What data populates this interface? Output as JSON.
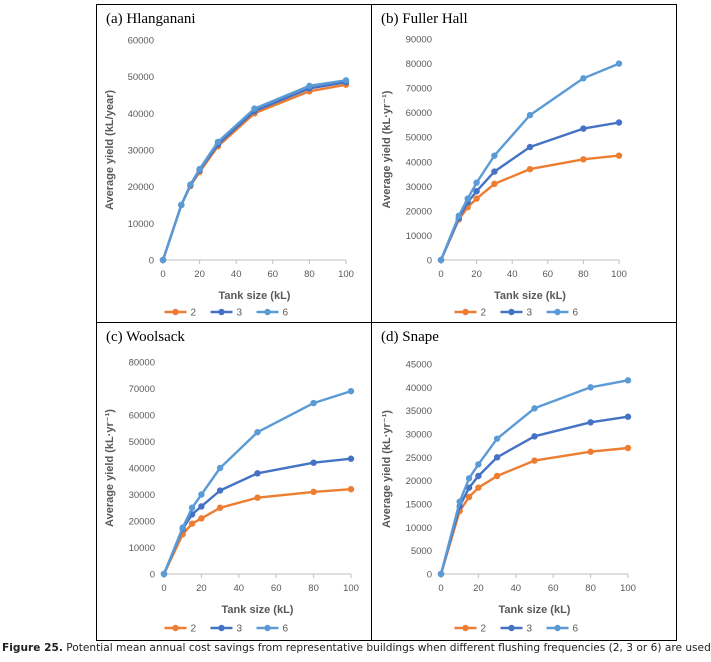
{
  "colors": {
    "series": [
      "#ed7d31",
      "#4472c4",
      "#5b9bd5"
    ],
    "axis": "#bfbfbf",
    "panel_border": "#000000",
    "text": "#595959"
  },
  "caption": {
    "label": "Figure 25.",
    "text": "Potential mean annual cost savings from representative buildings when different flushing frequencies (2, 3 or 6) are used"
  },
  "chart_data": [
    {
      "type": "line",
      "panel_title": "(a) Hlanganani",
      "xlabel": "Tank size (kL)",
      "ylabel": "Average yield (kL/year)",
      "ylim": [
        0,
        60000
      ],
      "ytick_step": 10000,
      "xlim": [
        0,
        100
      ],
      "x_ticks": [
        0,
        20,
        40,
        60,
        80,
        100
      ],
      "x": [
        0,
        10,
        15,
        20,
        30,
        50,
        80,
        100
      ],
      "series": [
        {
          "name": "2",
          "values": [
            0,
            15000,
            20200,
            24000,
            31000,
            40000,
            46000,
            47800
          ]
        },
        {
          "name": "3",
          "values": [
            0,
            15000,
            20400,
            24500,
            31500,
            40600,
            46800,
            48500
          ]
        },
        {
          "name": "6",
          "values": [
            0,
            15000,
            20600,
            24800,
            32200,
            41300,
            47500,
            49000
          ]
        }
      ],
      "legend": "bottom",
      "grid": false
    },
    {
      "type": "line",
      "panel_title": "(b) Fuller Hall",
      "xlabel": "Tank size (kL)",
      "ylabel": "Average yield (kL·yr⁻¹)",
      "ylim": [
        0,
        90000
      ],
      "ytick_step": 10000,
      "xlim": [
        0,
        100
      ],
      "x_ticks": [
        0,
        20,
        40,
        60,
        80,
        100
      ],
      "x": [
        0,
        10,
        15,
        20,
        30,
        50,
        80,
        100
      ],
      "series": [
        {
          "name": "2",
          "values": [
            0,
            16500,
            21500,
            25000,
            31000,
            37000,
            41000,
            42500
          ]
        },
        {
          "name": "3",
          "values": [
            0,
            17000,
            23500,
            28000,
            36000,
            46000,
            53500,
            56000
          ]
        },
        {
          "name": "6",
          "values": [
            0,
            18000,
            25000,
            31500,
            42500,
            59000,
            74000,
            80000
          ]
        }
      ],
      "legend": "bottom",
      "grid": false
    },
    {
      "type": "line",
      "panel_title": "(c) Woolsack",
      "xlabel": "Tank size (kL)",
      "ylabel": "Average yield (kL·yr⁻¹)",
      "ylim": [
        0,
        80000
      ],
      "ytick_step": 10000,
      "xlim": [
        0,
        100
      ],
      "x_ticks": [
        0,
        20,
        40,
        60,
        80,
        100
      ],
      "x": [
        0,
        10,
        15,
        20,
        30,
        50,
        80,
        100
      ],
      "series": [
        {
          "name": "2",
          "values": [
            0,
            15000,
            19000,
            21000,
            25000,
            28800,
            31000,
            32000
          ]
        },
        {
          "name": "3",
          "values": [
            0,
            17000,
            22500,
            25500,
            31500,
            38000,
            42000,
            43500
          ]
        },
        {
          "name": "6",
          "values": [
            0,
            17500,
            25000,
            30000,
            40000,
            53500,
            64500,
            69000
          ]
        }
      ],
      "legend": "bottom",
      "grid": false
    },
    {
      "type": "line",
      "panel_title": "(d) Snape",
      "xlabel": "Tank size (kL)",
      "ylabel": "Average yield (kL·yr⁻¹)",
      "ylim": [
        0,
        45000
      ],
      "ytick_step": 5000,
      "xlim": [
        0,
        100
      ],
      "x_ticks": [
        0,
        20,
        40,
        60,
        80,
        100
      ],
      "x": [
        0,
        10,
        15,
        20,
        30,
        50,
        80,
        100
      ],
      "series": [
        {
          "name": "2",
          "values": [
            0,
            13500,
            16500,
            18500,
            21000,
            24300,
            26200,
            27000
          ]
        },
        {
          "name": "3",
          "values": [
            0,
            14500,
            18500,
            21000,
            25000,
            29500,
            32500,
            33700
          ]
        },
        {
          "name": "6",
          "values": [
            0,
            15500,
            20500,
            23500,
            29000,
            35500,
            40000,
            41500
          ]
        }
      ],
      "legend": "bottom",
      "grid": false
    }
  ]
}
